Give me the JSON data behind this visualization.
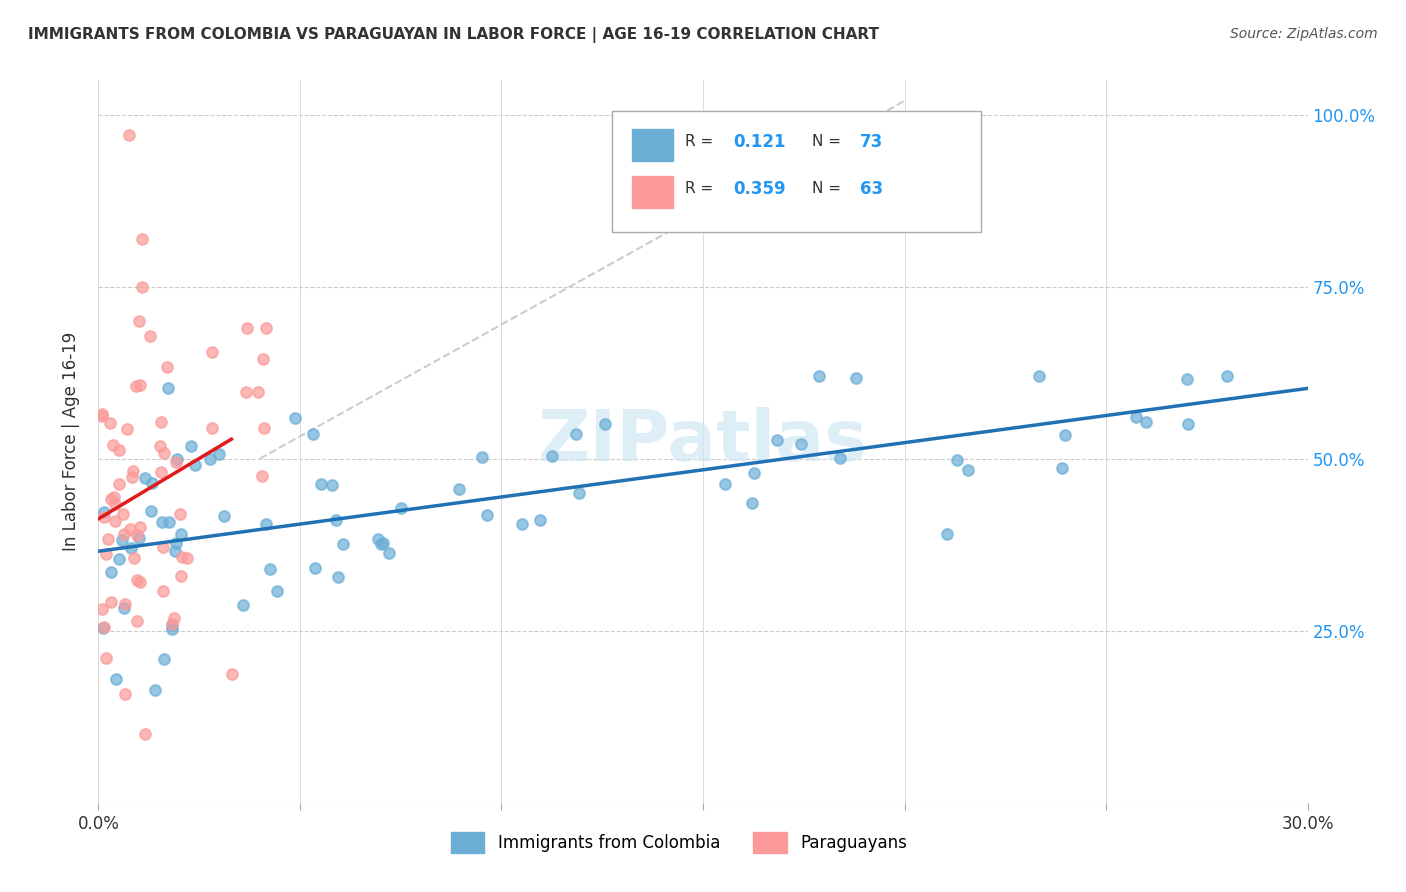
{
  "title": "IMMIGRANTS FROM COLOMBIA VS PARAGUAYAN IN LABOR FORCE | AGE 16-19 CORRELATION CHART",
  "source": "Source: ZipAtlas.com",
  "ylabel": "In Labor Force | Age 16-19",
  "x_min": 0.0,
  "x_max": 0.3,
  "y_min": 0.0,
  "y_max": 1.05,
  "x_ticks": [
    0.0,
    0.05,
    0.1,
    0.15,
    0.2,
    0.25,
    0.3
  ],
  "y_ticks": [
    0.0,
    0.25,
    0.5,
    0.75,
    1.0
  ],
  "y_tick_labels_right": [
    "",
    "25.0%",
    "50.0%",
    "75.0%",
    "100.0%"
  ],
  "watermark": "ZIPatlas",
  "colombia_color": "#6baed6",
  "paraguay_color": "#fb9a99",
  "colombia_R": 0.121,
  "colombia_N": 73,
  "paraguay_R": 0.359,
  "paraguay_N": 63,
  "colombia_line_color": "#2171b5",
  "paraguay_line_color": "#e31a1c",
  "diagonal_line_color": "#cccccc"
}
